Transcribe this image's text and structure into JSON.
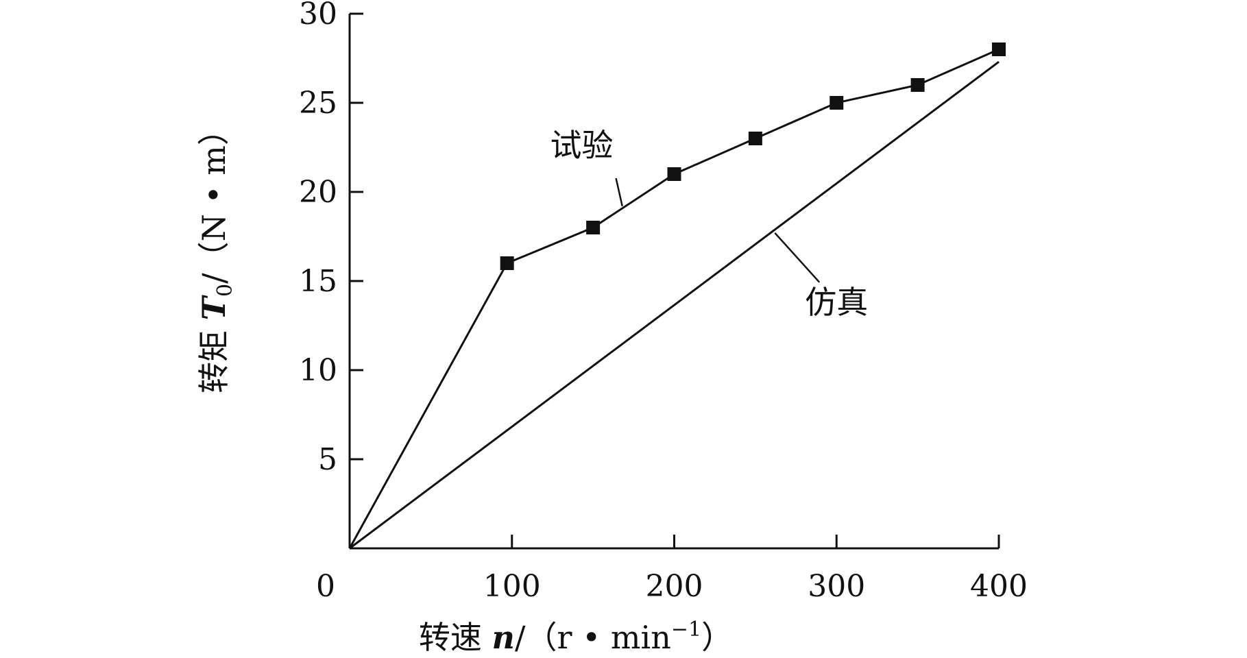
{
  "chart_data": {
    "type": "line",
    "title": "",
    "xlabel": "转速 n/(r·min⁻¹)",
    "ylabel": "转矩 T₀/(N·m)",
    "xlabel_parts": {
      "prefix": "转速 ",
      "var": "n",
      "mid": "/（r • min",
      "sup": "−1",
      "suffix": "）"
    },
    "ylabel_parts": {
      "prefix": "转矩 ",
      "var": "T",
      "sub": "0",
      "suffix": "/（N • m）"
    },
    "xlim": [
      0,
      400
    ],
    "ylim": [
      0,
      30
    ],
    "x_ticks": [
      0,
      100,
      200,
      300,
      400
    ],
    "y_ticks": [
      5,
      10,
      15,
      20,
      25,
      30
    ],
    "x_tick_labels": [
      "0",
      "100",
      "200",
      "300",
      "400"
    ],
    "y_tick_labels": [
      "5",
      "10",
      "15",
      "20",
      "25",
      "30"
    ],
    "grid": false,
    "legend": "none",
    "series": [
      {
        "name": "试验",
        "marker": "square",
        "color": "#111111",
        "x": [
          0,
          97,
          150,
          200,
          250,
          300,
          350,
          400
        ],
        "y": [
          0,
          16,
          18,
          21,
          23,
          25,
          26,
          28
        ],
        "marker_from_index": 1
      },
      {
        "name": "仿真",
        "marker": "none",
        "color": "#111111",
        "x": [
          0,
          400
        ],
        "y": [
          0,
          27.3
        ]
      }
    ],
    "annotations": [
      {
        "text": "试验",
        "target_series": 0,
        "point": [
          168,
          19.2
        ],
        "text_at": [
          143,
          22.0
        ]
      },
      {
        "text": "仿真",
        "target_series": 1,
        "point": [
          262,
          17.7
        ],
        "text_at": [
          300,
          13.2
        ]
      }
    ]
  }
}
